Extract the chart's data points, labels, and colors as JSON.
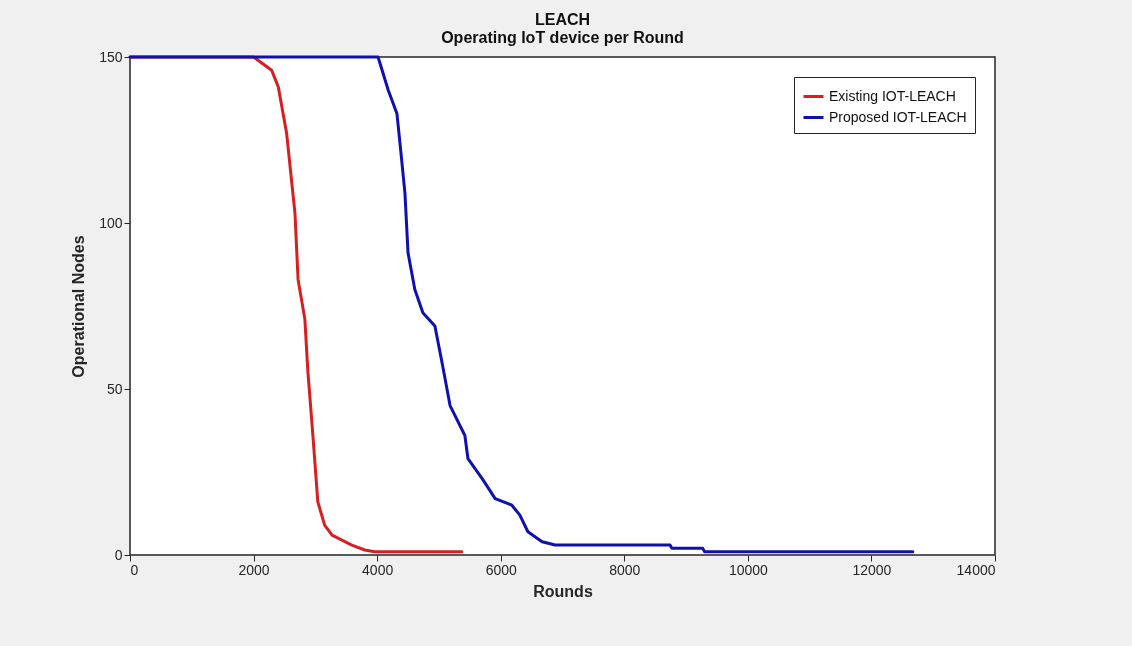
{
  "chart_data": {
    "type": "line",
    "title": "LEACH",
    "subtitle": "Operating IoT device per Round",
    "xlabel": "Rounds",
    "ylabel": "Operational Nodes",
    "xlim": [
      0,
      14000
    ],
    "ylim": [
      0,
      150
    ],
    "xticks": [
      0,
      2000,
      4000,
      6000,
      8000,
      10000,
      12000,
      14000
    ],
    "yticks": [
      0,
      50,
      100,
      150
    ],
    "grid": false,
    "legend": "top right",
    "series": [
      {
        "name": "Existing IOT-LEACH",
        "color": "#d62020",
        "x": [
          0,
          2000,
          2293,
          2400,
          2535,
          2670,
          2720,
          2830,
          2880,
          2960,
          3040,
          3150,
          3270,
          3590,
          3800,
          3960,
          5370
        ],
        "values": [
          150,
          150,
          146,
          141,
          127,
          103,
          83,
          71,
          55,
          36,
          16,
          9,
          6,
          3,
          1.5,
          1,
          1
        ]
      },
      {
        "name": "Proposed IOT-LEACH",
        "color": "#1010b0",
        "x": [
          0,
          4015,
          4180,
          4320,
          4370,
          4450,
          4500,
          4610,
          4740,
          4935,
          5070,
          5180,
          5420,
          5470,
          5700,
          5910,
          6180,
          6310,
          6440,
          6670,
          6880,
          8740,
          8770,
          9270,
          9300,
          12670
        ],
        "values": [
          150,
          150,
          140,
          133,
          124,
          109,
          91,
          80,
          73,
          69,
          56,
          45,
          36,
          29,
          23,
          17,
          15,
          12,
          7,
          4,
          3,
          3,
          2,
          2,
          1,
          1
        ]
      }
    ]
  }
}
